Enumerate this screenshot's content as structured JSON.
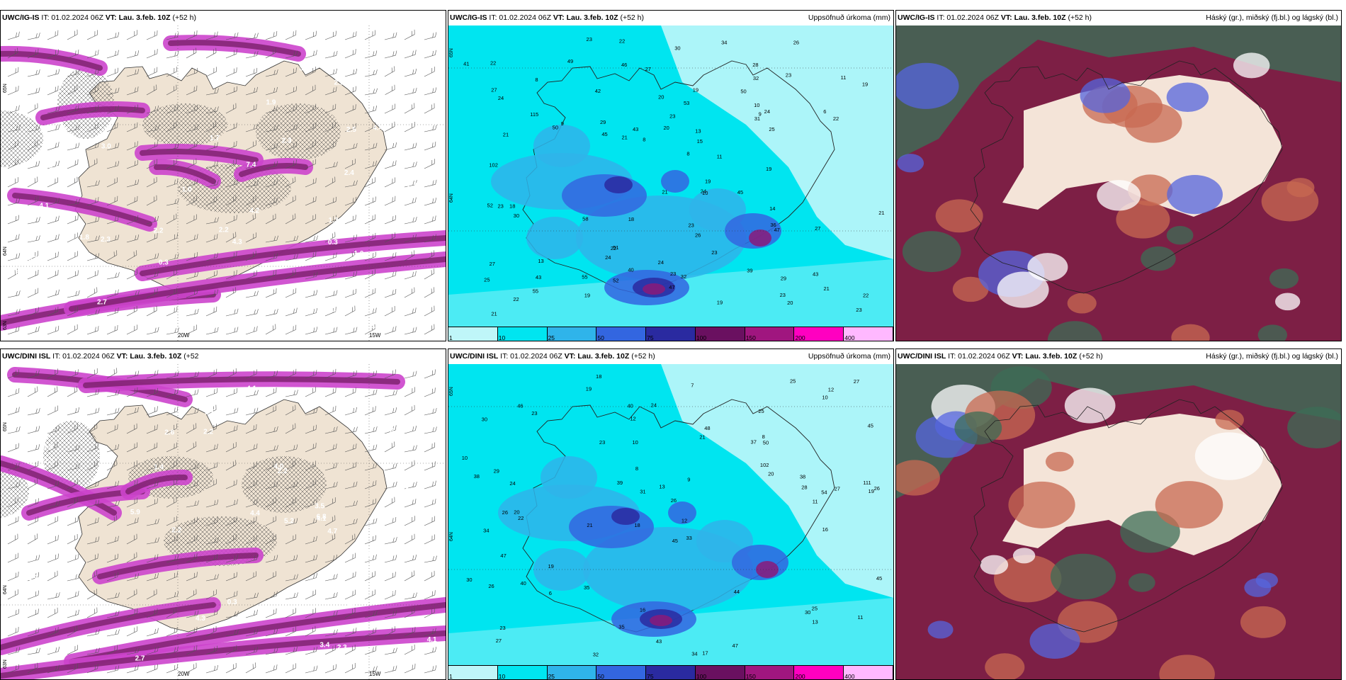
{
  "panels": [
    {
      "id": "p1",
      "model": "UWC/IG-IS",
      "it": "IT: 01.02.2024 06Z",
      "vt_label": "VT:",
      "vt": "Lau. 3.feb. 10Z",
      "lead": "(+52 h)",
      "right": "",
      "type": "wind"
    },
    {
      "id": "p2",
      "model": "UWC/IG-IS",
      "it": "IT: 01.02.2024 06Z",
      "vt_label": "VT:",
      "vt": "Lau. 3.feb. 10Z",
      "lead": "(+52 h)",
      "right": "Uppsöfnuð úrkoma (mm)",
      "type": "precip"
    },
    {
      "id": "p3",
      "model": "UWC/IG-IS",
      "it": "IT: 01.02.2024 06Z",
      "vt_label": "VT:",
      "vt": "Lau. 3.feb. 10Z",
      "lead": "(+52 h)",
      "right": "Háský (gr.), miðský (fj.bl.) og lágský (bl.)",
      "type": "cloud"
    },
    {
      "id": "p4",
      "model": "UWC/DINI ISL",
      "it": "IT: 01.02.2024 06Z",
      "vt_label": "VT:",
      "vt": "Lau. 3.feb. 10Z",
      "lead": "(+52",
      "right": "",
      "type": "wind"
    },
    {
      "id": "p5",
      "model": "UWC/DINI ISL",
      "it": "IT: 01.02.2024 06Z",
      "vt_label": "VT:",
      "vt": "Lau. 3.feb. 10Z",
      "lead": "(+52 h)",
      "right": "Uppsöfnuð úrkoma (mm)",
      "type": "precip"
    },
    {
      "id": "p6",
      "model": "UWC/DINI ISL",
      "it": "IT: 01.02.2024 06Z",
      "vt_label": "VT:",
      "vt": "Lau. 3.feb. 10Z",
      "lead": "(+52 h)",
      "right": "Háský (gr.), miðský (fj.bl.) og lágský (bl.)",
      "type": "cloud"
    }
  ],
  "wind_labels": {
    "top": [
      "0.3",
      "3.1",
      "4.2",
      "6.3",
      "13.9",
      "4.4",
      "2.6",
      "7.4",
      "3.2",
      "2.0",
      "3.1",
      "1.3",
      "0.5",
      "1.0",
      "0.3",
      "2.5",
      "1.0",
      "1.8",
      "0.6",
      "1.7",
      "4.3",
      "4.1",
      "2.4",
      "2.1",
      "2.3",
      "2.7",
      "3.0",
      "2.5",
      "2.7",
      "2.3",
      "3.8",
      "3.6",
      "4.1",
      "1.2",
      "1.0",
      "6.0",
      "2.3",
      "4.2",
      "2.6",
      "2.1",
      "2.2",
      "2.2",
      "1.9"
    ],
    "bottom": [
      "4.2",
      "6.8",
      "7.0",
      "5.2",
      "3.4",
      "2.6",
      "4.1",
      "5.9",
      "3.7",
      "4.4",
      "3.5",
      "4.0",
      "0.3",
      "2.6",
      "1.4",
      "2.7",
      "4.1",
      "2.2",
      "1.9",
      "2.2",
      "2.3",
      "2.7",
      "4.0",
      "2.3",
      "4.1",
      "4.7",
      "3.0",
      "4.3",
      "3.5",
      "2.2",
      "2.3"
    ]
  },
  "wind_axis": {
    "lon": [
      "20W",
      "15W"
    ],
    "lat": [
      "65N",
      "64N",
      "63N"
    ]
  },
  "precip_labels": {
    "top": [
      "22",
      "27",
      "19",
      "23",
      "27",
      "34",
      "43",
      "28",
      "29",
      "24",
      "23",
      "45",
      "40",
      "30",
      "39",
      "29",
      "36",
      "30",
      "21",
      "19",
      "41",
      "55",
      "47",
      "45",
      "47",
      "32",
      "43",
      "53",
      "22",
      "23",
      "21",
      "18",
      "19",
      "21",
      "24",
      "19",
      "23",
      "25",
      "21",
      "24",
      "50",
      "51",
      "42",
      "52",
      "19",
      "21",
      "23",
      "32",
      "21",
      "22",
      "24",
      "20",
      "22",
      "23",
      "13",
      "8",
      "6",
      "8",
      "11",
      "14",
      "15",
      "10",
      "9",
      "11",
      "20",
      "18",
      "26",
      "43",
      "19",
      "13",
      "9",
      "10",
      "8",
      "58",
      "55",
      "52",
      "50",
      "23",
      "20",
      "31",
      "22",
      "23",
      "24",
      "22",
      "49",
      "102",
      "115",
      "23",
      "27",
      "25",
      "26",
      "27",
      "46"
    ],
    "bottom": [
      "18",
      "25",
      "19",
      "18",
      "33",
      "20",
      "30",
      "37",
      "34",
      "21",
      "26",
      "27",
      "19",
      "21",
      "34",
      "17",
      "16",
      "25",
      "20",
      "19",
      "24",
      "26",
      "26",
      "27",
      "30",
      "29",
      "31",
      "28",
      "25",
      "26",
      "30",
      "48",
      "40",
      "39",
      "44",
      "45",
      "38",
      "35",
      "27",
      "24",
      "23",
      "32",
      "47",
      "46",
      "43",
      "50",
      "13",
      "8",
      "10",
      "12",
      "12",
      "11",
      "9",
      "10",
      "7",
      "6",
      "8",
      "13",
      "12",
      "10",
      "11",
      "16",
      "23",
      "35",
      "45",
      "38",
      "54",
      "22",
      "23",
      "45",
      "47",
      "40",
      "111",
      "102"
    ]
  },
  "legend": {
    "labels": [
      "1",
      "10",
      "25",
      "50",
      "75",
      "100",
      "150",
      "200",
      "400"
    ]
  },
  "colors": {
    "land": "#efe3d3",
    "sea_wind": "#ffffff",
    "magenta": "#cc44cc",
    "dark_magenta": "#7a1f6a",
    "precip_light": "#bff6f9",
    "precip_cyan": "#00e5f0",
    "precip_mid": "#2fb4ea",
    "precip_blue": "#3366e0",
    "precip_dark": "#2a2aa0",
    "precip_purple": "#8a1a7a",
    "cloud_maroon": "#7d1f45",
    "cloud_green": "#3c6e56",
    "cloud_rust": "#c86a52",
    "cloud_blue": "#5566dd",
    "cloud_cream": "#f4e4d8"
  }
}
